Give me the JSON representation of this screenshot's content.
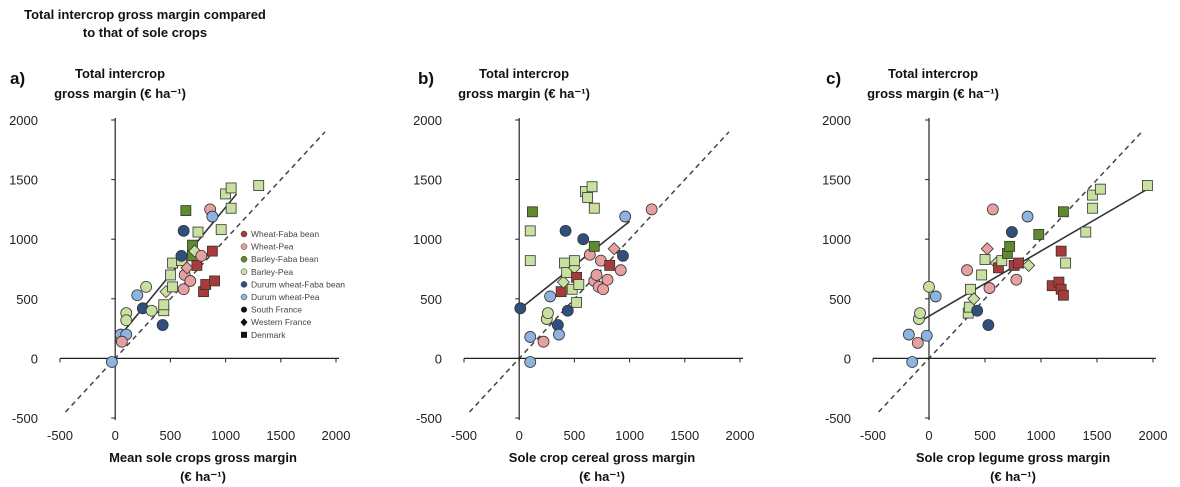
{
  "figure_title_lines": [
    "Total intercrop gross margin compared",
    "to that of sole crops"
  ],
  "colors": {
    "Wheat-Faba bean": "#a83a3a",
    "Wheat-Pea": "#e7a0a0",
    "Barley-Faba bean": "#5f8a2e",
    "Barley-Pea": "#c8e0a0",
    "Durum wheat-Faba bean": "#2f4f7f",
    "Durum wheat-Pea": "#8fb3e0"
  },
  "legend": {
    "crops": [
      "Wheat-Faba bean",
      "Wheat-Pea",
      "Barley-Faba bean",
      "Barley-Pea",
      "Durum wheat-Faba bean",
      "Durum wheat-Pea"
    ],
    "sites": [
      {
        "label": "South France",
        "shape": "circle"
      },
      {
        "label": "Western France",
        "shape": "diamond"
      },
      {
        "label": "Denmark",
        "shape": "square"
      }
    ]
  },
  "chart_data": [
    {
      "type": "scatter",
      "letter": "a)",
      "ylabel_lines": [
        "Total intercrop",
        "gross  margin (€ ha⁻¹)"
      ],
      "xlabel_lines": [
        "Mean sole crops gross margin",
        "(€ ha⁻¹)"
      ],
      "xlim": [
        -500,
        2000
      ],
      "ylim": [
        -500,
        2000
      ],
      "xticks": [
        "-500",
        "0",
        "500",
        "1000",
        "1500",
        "2000"
      ],
      "yticks": [
        "-500",
        "0",
        "500",
        "1000",
        "1500",
        "2000"
      ],
      "reference_line": "1:1",
      "fit_line": [
        [
          0,
          140
        ],
        [
          1100,
          1380
        ]
      ],
      "points": [
        {
          "x": -30,
          "y": -30,
          "crop": "Durum wheat-Pea",
          "site": "South France"
        },
        {
          "x": 50,
          "y": 200,
          "crop": "Durum wheat-Pea",
          "site": "South France"
        },
        {
          "x": 100,
          "y": 200,
          "crop": "Durum wheat-Pea",
          "site": "South France"
        },
        {
          "x": 60,
          "y": 140,
          "crop": "Wheat-Pea",
          "site": "South France"
        },
        {
          "x": 200,
          "y": 530,
          "crop": "Durum wheat-Pea",
          "site": "South France"
        },
        {
          "x": 250,
          "y": 420,
          "crop": "Durum wheat-Faba bean",
          "site": "South France"
        },
        {
          "x": 280,
          "y": 600,
          "crop": "Barley-Pea",
          "site": "South France"
        },
        {
          "x": 100,
          "y": 380,
          "crop": "Barley-Pea",
          "site": "South France"
        },
        {
          "x": 100,
          "y": 320,
          "crop": "Barley-Pea",
          "site": "South France"
        },
        {
          "x": 330,
          "y": 400,
          "crop": "Barley-Pea",
          "site": "South France"
        },
        {
          "x": 430,
          "y": 280,
          "crop": "Durum wheat-Faba bean",
          "site": "South France"
        },
        {
          "x": 440,
          "y": 400,
          "crop": "Barley-Pea",
          "site": "Denmark"
        },
        {
          "x": 440,
          "y": 450,
          "crop": "Barley-Pea",
          "site": "Denmark"
        },
        {
          "x": 460,
          "y": 560,
          "crop": "Barley-Pea",
          "site": "Western France"
        },
        {
          "x": 520,
          "y": 600,
          "crop": "Barley-Pea",
          "site": "Denmark"
        },
        {
          "x": 500,
          "y": 700,
          "crop": "Barley-Pea",
          "site": "Denmark"
        },
        {
          "x": 520,
          "y": 800,
          "crop": "Barley-Pea",
          "site": "Denmark"
        },
        {
          "x": 600,
          "y": 820,
          "crop": "Barley-Pea",
          "site": "Denmark"
        },
        {
          "x": 600,
          "y": 860,
          "crop": "Durum wheat-Faba bean",
          "site": "South France"
        },
        {
          "x": 620,
          "y": 1070,
          "crop": "Durum wheat-Faba bean",
          "site": "South France"
        },
        {
          "x": 620,
          "y": 580,
          "crop": "Wheat-Pea",
          "site": "South France"
        },
        {
          "x": 630,
          "y": 700,
          "crop": "Wheat-Pea",
          "site": "South France"
        },
        {
          "x": 650,
          "y": 760,
          "crop": "Wheat-Pea",
          "site": "Western France"
        },
        {
          "x": 680,
          "y": 650,
          "crop": "Wheat-Pea",
          "site": "South France"
        },
        {
          "x": 640,
          "y": 1240,
          "crop": "Barley-Faba bean",
          "site": "Denmark"
        },
        {
          "x": 700,
          "y": 860,
          "crop": "Barley-Faba bean",
          "site": "Denmark"
        },
        {
          "x": 700,
          "y": 950,
          "crop": "Barley-Faba bean",
          "site": "Denmark"
        },
        {
          "x": 720,
          "y": 900,
          "crop": "Barley-Pea",
          "site": "Western France"
        },
        {
          "x": 740,
          "y": 780,
          "crop": "Wheat-Faba bean",
          "site": "Denmark"
        },
        {
          "x": 750,
          "y": 1060,
          "crop": "Barley-Pea",
          "site": "Denmark"
        },
        {
          "x": 780,
          "y": 860,
          "crop": "Wheat-Pea",
          "site": "South France"
        },
        {
          "x": 800,
          "y": 560,
          "crop": "Wheat-Faba bean",
          "site": "Denmark"
        },
        {
          "x": 820,
          "y": 620,
          "crop": "Wheat-Faba bean",
          "site": "Denmark"
        },
        {
          "x": 860,
          "y": 1250,
          "crop": "Wheat-Pea",
          "site": "South France"
        },
        {
          "x": 880,
          "y": 1190,
          "crop": "Durum wheat-Pea",
          "site": "South France"
        },
        {
          "x": 880,
          "y": 900,
          "crop": "Wheat-Faba bean",
          "site": "Denmark"
        },
        {
          "x": 900,
          "y": 650,
          "crop": "Wheat-Faba bean",
          "site": "Denmark"
        },
        {
          "x": 960,
          "y": 1080,
          "crop": "Barley-Pea",
          "site": "Denmark"
        },
        {
          "x": 1000,
          "y": 1380,
          "crop": "Barley-Pea",
          "site": "Denmark"
        },
        {
          "x": 1050,
          "y": 1430,
          "crop": "Barley-Pea",
          "site": "Denmark"
        },
        {
          "x": 1050,
          "y": 1260,
          "crop": "Barley-Pea",
          "site": "Denmark"
        },
        {
          "x": 1300,
          "y": 1450,
          "crop": "Barley-Pea",
          "site": "Denmark"
        }
      ]
    },
    {
      "type": "scatter",
      "letter": "b)",
      "ylabel_lines": [
        "Total intercrop",
        "gross  margin (€ ha⁻¹)"
      ],
      "xlabel_lines": [
        "Sole crop cereal gross margin",
        "(€ ha⁻¹)"
      ],
      "xlim": [
        -500,
        2000
      ],
      "ylim": [
        -500,
        2000
      ],
      "xticks": [
        "-500",
        "0",
        "500",
        "1000",
        "1500",
        "2000"
      ],
      "yticks": [
        "-500",
        "0",
        "500",
        "1000",
        "1500",
        "2000"
      ],
      "reference_line": "1:1",
      "fit_line": [
        [
          0,
          410
        ],
        [
          1000,
          1150
        ]
      ],
      "points": [
        {
          "x": 10,
          "y": 420,
          "crop": "Durum wheat-Faba bean",
          "site": "South France"
        },
        {
          "x": 100,
          "y": -30,
          "crop": "Durum wheat-Pea",
          "site": "South France"
        },
        {
          "x": 100,
          "y": 180,
          "crop": "Durum wheat-Pea",
          "site": "South France"
        },
        {
          "x": 120,
          "y": 1230,
          "crop": "Barley-Faba bean",
          "site": "Denmark"
        },
        {
          "x": 100,
          "y": 1070,
          "crop": "Barley-Pea",
          "site": "Denmark"
        },
        {
          "x": 100,
          "y": 820,
          "crop": "Barley-Pea",
          "site": "Denmark"
        },
        {
          "x": 220,
          "y": 140,
          "crop": "Wheat-Pea",
          "site": "South France"
        },
        {
          "x": 250,
          "y": 330,
          "crop": "Barley-Pea",
          "site": "South France"
        },
        {
          "x": 260,
          "y": 380,
          "crop": "Barley-Pea",
          "site": "South France"
        },
        {
          "x": 280,
          "y": 520,
          "crop": "Durum wheat-Pea",
          "site": "South France"
        },
        {
          "x": 350,
          "y": 280,
          "crop": "Durum wheat-Faba bean",
          "site": "South France"
        },
        {
          "x": 360,
          "y": 200,
          "crop": "Durum wheat-Pea",
          "site": "South France"
        },
        {
          "x": 380,
          "y": 560,
          "crop": "Wheat-Faba bean",
          "site": "Denmark"
        },
        {
          "x": 400,
          "y": 640,
          "crop": "Barley-Pea",
          "site": "Western France"
        },
        {
          "x": 410,
          "y": 800,
          "crop": "Barley-Pea",
          "site": "Denmark"
        },
        {
          "x": 420,
          "y": 1070,
          "crop": "Durum wheat-Faba bean",
          "site": "South France"
        },
        {
          "x": 430,
          "y": 720,
          "crop": "Barley-Pea",
          "site": "Denmark"
        },
        {
          "x": 440,
          "y": 400,
          "crop": "Durum wheat-Faba bean",
          "site": "South France"
        },
        {
          "x": 480,
          "y": 580,
          "crop": "Barley-Pea",
          "site": "Denmark"
        },
        {
          "x": 500,
          "y": 760,
          "crop": "Barley-Pea",
          "site": "Western France"
        },
        {
          "x": 500,
          "y": 820,
          "crop": "Barley-Pea",
          "site": "Denmark"
        },
        {
          "x": 520,
          "y": 470,
          "crop": "Barley-Pea",
          "site": "Denmark"
        },
        {
          "x": 520,
          "y": 680,
          "crop": "Wheat-Faba bean",
          "site": "Denmark"
        },
        {
          "x": 540,
          "y": 620,
          "crop": "Barley-Pea",
          "site": "Denmark"
        },
        {
          "x": 580,
          "y": 1000,
          "crop": "Durum wheat-Faba bean",
          "site": "South France"
        },
        {
          "x": 600,
          "y": 1400,
          "crop": "Barley-Pea",
          "site": "Denmark"
        },
        {
          "x": 620,
          "y": 1350,
          "crop": "Barley-Pea",
          "site": "Denmark"
        },
        {
          "x": 640,
          "y": 870,
          "crop": "Wheat-Pea",
          "site": "South France"
        },
        {
          "x": 660,
          "y": 1440,
          "crop": "Barley-Pea",
          "site": "Denmark"
        },
        {
          "x": 680,
          "y": 1260,
          "crop": "Barley-Pea",
          "site": "Denmark"
        },
        {
          "x": 680,
          "y": 940,
          "crop": "Barley-Faba bean",
          "site": "Denmark"
        },
        {
          "x": 680,
          "y": 650,
          "crop": "Wheat-Pea",
          "site": "South France"
        },
        {
          "x": 700,
          "y": 700,
          "crop": "Wheat-Pea",
          "site": "South France"
        },
        {
          "x": 720,
          "y": 600,
          "crop": "Wheat-Pea",
          "site": "South France"
        },
        {
          "x": 740,
          "y": 820,
          "crop": "Wheat-Pea",
          "site": "South France"
        },
        {
          "x": 760,
          "y": 580,
          "crop": "Wheat-Pea",
          "site": "South France"
        },
        {
          "x": 800,
          "y": 660,
          "crop": "Wheat-Pea",
          "site": "South France"
        },
        {
          "x": 820,
          "y": 780,
          "crop": "Wheat-Faba bean",
          "site": "Denmark"
        },
        {
          "x": 860,
          "y": 920,
          "crop": "Wheat-Pea",
          "site": "Western France"
        },
        {
          "x": 920,
          "y": 740,
          "crop": "Wheat-Pea",
          "site": "South France"
        },
        {
          "x": 940,
          "y": 860,
          "crop": "Durum wheat-Faba bean",
          "site": "South France"
        },
        {
          "x": 960,
          "y": 1190,
          "crop": "Durum wheat-Pea",
          "site": "South France"
        },
        {
          "x": 1200,
          "y": 1250,
          "crop": "Wheat-Pea",
          "site": "South France"
        }
      ]
    },
    {
      "type": "scatter",
      "letter": "c)",
      "ylabel_lines": [
        "Total intercrop",
        "gross  margin (€ ha⁻¹)"
      ],
      "xlabel_lines": [
        "Sole crop legume gross margin",
        "(€ ha⁻¹)"
      ],
      "xlim": [
        -500,
        2000
      ],
      "ylim": [
        -500,
        2000
      ],
      "xticks": [
        "-500",
        "0",
        "500",
        "1000",
        "1500",
        "2000"
      ],
      "yticks": [
        "-500",
        "0",
        "500",
        "1000",
        "1500",
        "2000"
      ],
      "reference_line": "1:1",
      "fit_line": [
        [
          -100,
          300
        ],
        [
          1950,
          1420
        ]
      ],
      "points": [
        {
          "x": -180,
          "y": 200,
          "crop": "Durum wheat-Pea",
          "site": "South France"
        },
        {
          "x": -150,
          "y": -30,
          "crop": "Durum wheat-Pea",
          "site": "South France"
        },
        {
          "x": -100,
          "y": 130,
          "crop": "Wheat-Pea",
          "site": "South France"
        },
        {
          "x": -90,
          "y": 330,
          "crop": "Barley-Pea",
          "site": "South France"
        },
        {
          "x": -80,
          "y": 380,
          "crop": "Barley-Pea",
          "site": "South France"
        },
        {
          "x": -20,
          "y": 190,
          "crop": "Durum wheat-Pea",
          "site": "South France"
        },
        {
          "x": 0,
          "y": 600,
          "crop": "Barley-Pea",
          "site": "South France"
        },
        {
          "x": 60,
          "y": 520,
          "crop": "Durum wheat-Pea",
          "site": "South France"
        },
        {
          "x": 340,
          "y": 740,
          "crop": "Wheat-Pea",
          "site": "South France"
        },
        {
          "x": 350,
          "y": 380,
          "crop": "Barley-Pea",
          "site": "Denmark"
        },
        {
          "x": 360,
          "y": 430,
          "crop": "Barley-Pea",
          "site": "Denmark"
        },
        {
          "x": 370,
          "y": 580,
          "crop": "Barley-Pea",
          "site": "Denmark"
        },
        {
          "x": 400,
          "y": 500,
          "crop": "Barley-Pea",
          "site": "Western France"
        },
        {
          "x": 430,
          "y": 400,
          "crop": "Durum wheat-Faba bean",
          "site": "South France"
        },
        {
          "x": 470,
          "y": 700,
          "crop": "Barley-Pea",
          "site": "Denmark"
        },
        {
          "x": 500,
          "y": 830,
          "crop": "Barley-Pea",
          "site": "Denmark"
        },
        {
          "x": 520,
          "y": 920,
          "crop": "Wheat-Pea",
          "site": "Western France"
        },
        {
          "x": 530,
          "y": 280,
          "crop": "Durum wheat-Faba bean",
          "site": "South France"
        },
        {
          "x": 540,
          "y": 590,
          "crop": "Wheat-Pea",
          "site": "South France"
        },
        {
          "x": 570,
          "y": 1250,
          "crop": "Wheat-Pea",
          "site": "South France"
        },
        {
          "x": 600,
          "y": 800,
          "crop": "Barley-Pea",
          "site": "Western France"
        },
        {
          "x": 620,
          "y": 760,
          "crop": "Wheat-Faba bean",
          "site": "Denmark"
        },
        {
          "x": 650,
          "y": 820,
          "crop": "Barley-Pea",
          "site": "Denmark"
        },
        {
          "x": 700,
          "y": 880,
          "crop": "Barley-Faba bean",
          "site": "Denmark"
        },
        {
          "x": 720,
          "y": 940,
          "crop": "Barley-Faba bean",
          "site": "Denmark"
        },
        {
          "x": 740,
          "y": 1060,
          "crop": "Durum wheat-Faba bean",
          "site": "South France"
        },
        {
          "x": 760,
          "y": 780,
          "crop": "Wheat-Faba bean",
          "site": "Denmark"
        },
        {
          "x": 780,
          "y": 660,
          "crop": "Wheat-Pea",
          "site": "South France"
        },
        {
          "x": 800,
          "y": 800,
          "crop": "Wheat-Faba bean",
          "site": "Denmark"
        },
        {
          "x": 880,
          "y": 1190,
          "crop": "Durum wheat-Pea",
          "site": "South France"
        },
        {
          "x": 890,
          "y": 780,
          "crop": "Barley-Pea",
          "site": "Western France"
        },
        {
          "x": 980,
          "y": 1040,
          "crop": "Barley-Faba bean",
          "site": "Denmark"
        },
        {
          "x": 1100,
          "y": 610,
          "crop": "Wheat-Faba bean",
          "site": "Denmark"
        },
        {
          "x": 1160,
          "y": 640,
          "crop": "Wheat-Faba bean",
          "site": "Denmark"
        },
        {
          "x": 1180,
          "y": 580,
          "crop": "Wheat-Faba bean",
          "site": "Denmark"
        },
        {
          "x": 1200,
          "y": 530,
          "crop": "Wheat-Faba bean",
          "site": "Denmark"
        },
        {
          "x": 1180,
          "y": 900,
          "crop": "Wheat-Faba bean",
          "site": "Denmark"
        },
        {
          "x": 1200,
          "y": 1230,
          "crop": "Barley-Faba bean",
          "site": "Denmark"
        },
        {
          "x": 1220,
          "y": 800,
          "crop": "Barley-Pea",
          "site": "Denmark"
        },
        {
          "x": 1400,
          "y": 1060,
          "crop": "Barley-Pea",
          "site": "Denmark"
        },
        {
          "x": 1460,
          "y": 1260,
          "crop": "Barley-Pea",
          "site": "Denmark"
        },
        {
          "x": 1460,
          "y": 1370,
          "crop": "Barley-Pea",
          "site": "Denmark"
        },
        {
          "x": 1530,
          "y": 1420,
          "crop": "Barley-Pea",
          "site": "Denmark"
        },
        {
          "x": 1950,
          "y": 1450,
          "crop": "Barley-Pea",
          "site": "Denmark"
        }
      ]
    }
  ]
}
